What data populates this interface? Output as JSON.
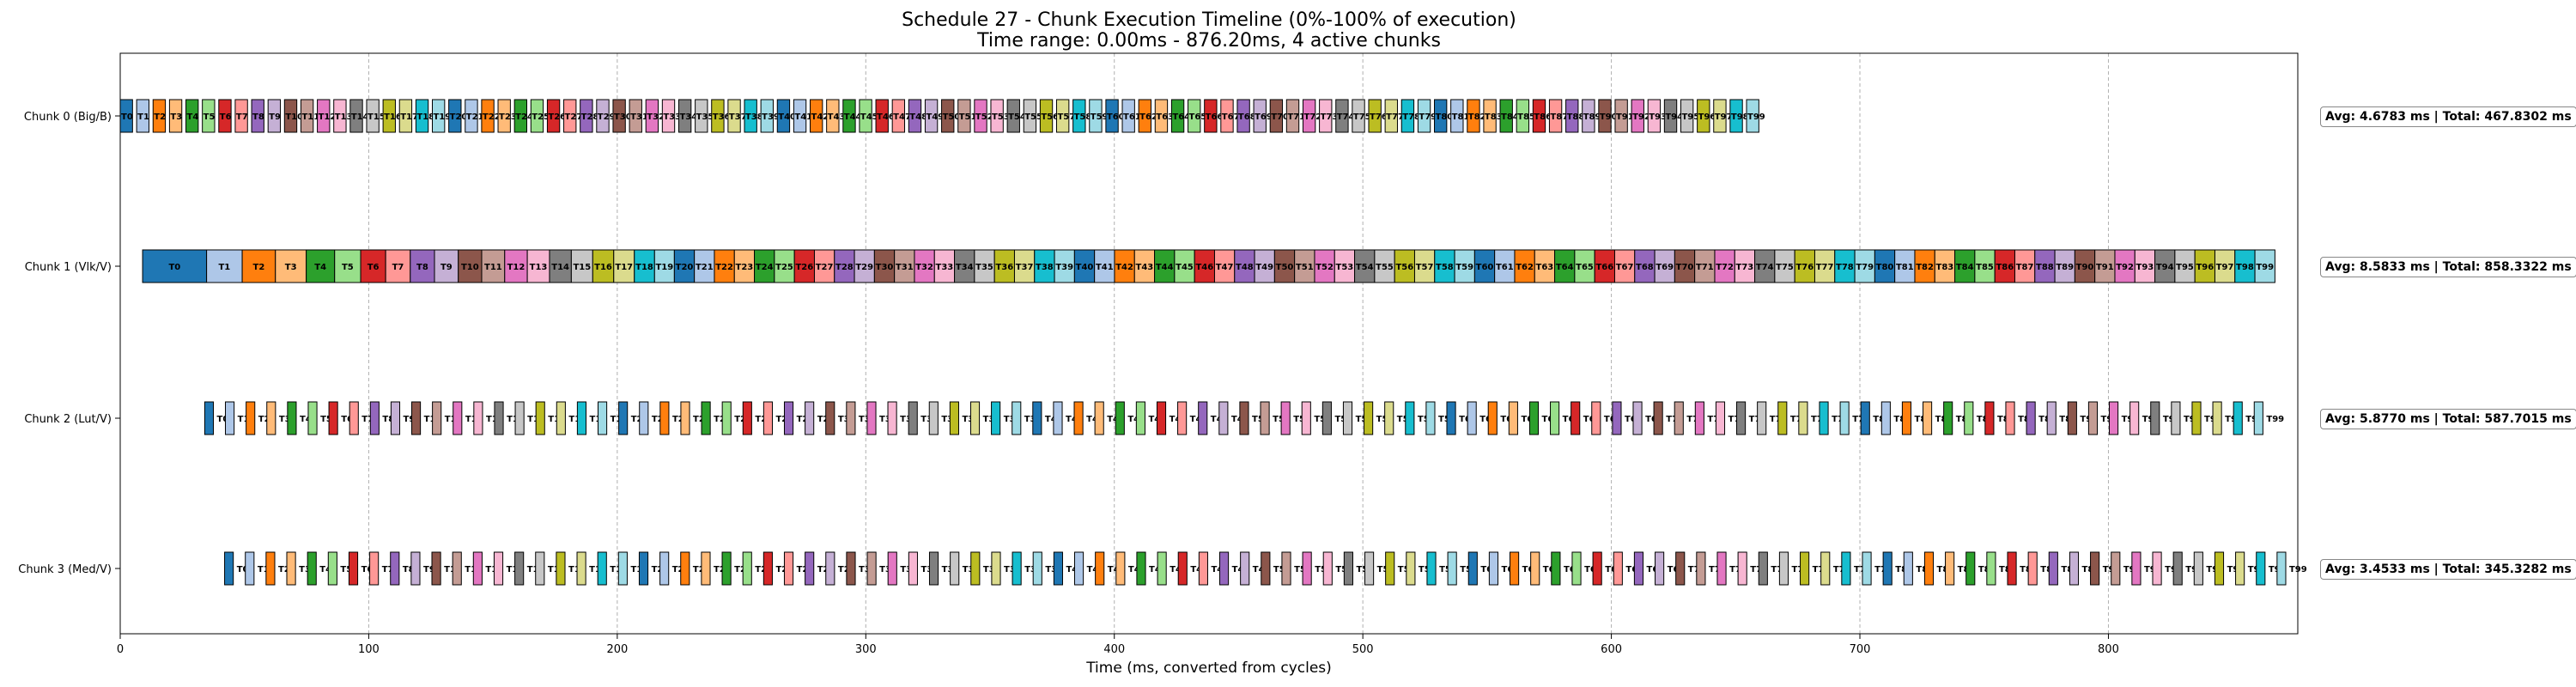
{
  "chart_data": {
    "type": "gantt",
    "title": "Schedule 27 - Chunk Execution Timeline (0%-100% of execution)",
    "subtitle": "Time range: 0.00ms - 876.20ms, 4 active chunks",
    "xlabel": "Time (ms, converted from cycles)",
    "xlim": [
      0,
      876.2
    ],
    "x_ticks": [
      0,
      100,
      200,
      300,
      400,
      500,
      600,
      700,
      800
    ],
    "grid": "vertical dashed",
    "task_colors": [
      "#1f77b4",
      "#aec7e8",
      "#ff7f0e",
      "#ffbb78",
      "#2ca02c",
      "#98df8a",
      "#d62728",
      "#ff9896",
      "#9467bd",
      "#c5b0d5",
      "#8c564b",
      "#c49c94",
      "#e377c2",
      "#f7b6d2",
      "#7f7f7f",
      "#c7c7c7",
      "#bcbd22",
      "#dbdb8d",
      "#17becf",
      "#9edae5"
    ],
    "series": [
      {
        "name": "Chunk 0 (Big/B)",
        "start": 0.0,
        "end": 661.0,
        "tasks": 100,
        "stats": "Avg: 4.6783 ms | Total: 467.8302 ms"
      },
      {
        "name": "Chunk 1 (Vlk/V)",
        "start": 9.0,
        "end": 867.0,
        "tasks": 100,
        "stats": "Avg: 8.5833 ms | Total: 858.3322 ms"
      },
      {
        "name": "Chunk 2 (Lut/V)",
        "start": 34.0,
        "end": 867.0,
        "tasks": 100,
        "stats": "Avg: 5.8770 ms | Total: 587.7015 ms"
      },
      {
        "name": "Chunk 3 (Med/V)",
        "start": 42.0,
        "end": 876.2,
        "tasks": 100,
        "stats": "Avg: 3.4533 ms | Total: 345.3282 ms"
      }
    ]
  }
}
